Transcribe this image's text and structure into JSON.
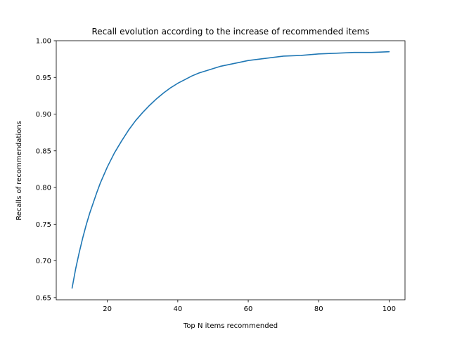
{
  "chart_data": {
    "type": "line",
    "title": "Recall evolution according to the increase of recommended items",
    "xlabel": "Top N items recommended",
    "ylabel": "Recalls of recommendations",
    "xlim": [
      5.5,
      104.5
    ],
    "ylim": [
      0.647,
      1.0
    ],
    "xticks": [
      20,
      40,
      60,
      80,
      100
    ],
    "yticks": [
      0.65,
      0.7,
      0.75,
      0.8,
      0.85,
      0.9,
      0.95,
      1.0
    ],
    "xtick_labels": [
      "20",
      "40",
      "60",
      "80",
      "100"
    ],
    "ytick_labels": [
      "0.65",
      "0.70",
      "0.75",
      "0.80",
      "0.85",
      "0.90",
      "0.95",
      "1.00"
    ],
    "grid": false,
    "series": [
      {
        "color": "#1f77b4",
        "x": [
          10,
          11,
          12,
          13,
          14,
          15,
          16,
          17,
          18,
          19,
          20,
          22,
          24,
          26,
          28,
          30,
          32,
          34,
          36,
          38,
          40,
          42,
          44,
          46,
          48,
          50,
          52,
          55,
          58,
          60,
          65,
          70,
          75,
          80,
          85,
          90,
          95,
          100
        ],
        "y": [
          0.663,
          0.689,
          0.711,
          0.731,
          0.749,
          0.765,
          0.779,
          0.793,
          0.806,
          0.817,
          0.828,
          0.847,
          0.863,
          0.878,
          0.891,
          0.902,
          0.912,
          0.921,
          0.929,
          0.936,
          0.942,
          0.947,
          0.952,
          0.956,
          0.959,
          0.962,
          0.965,
          0.968,
          0.971,
          0.973,
          0.976,
          0.979,
          0.98,
          0.982,
          0.983,
          0.984,
          0.984,
          0.985
        ]
      }
    ]
  }
}
